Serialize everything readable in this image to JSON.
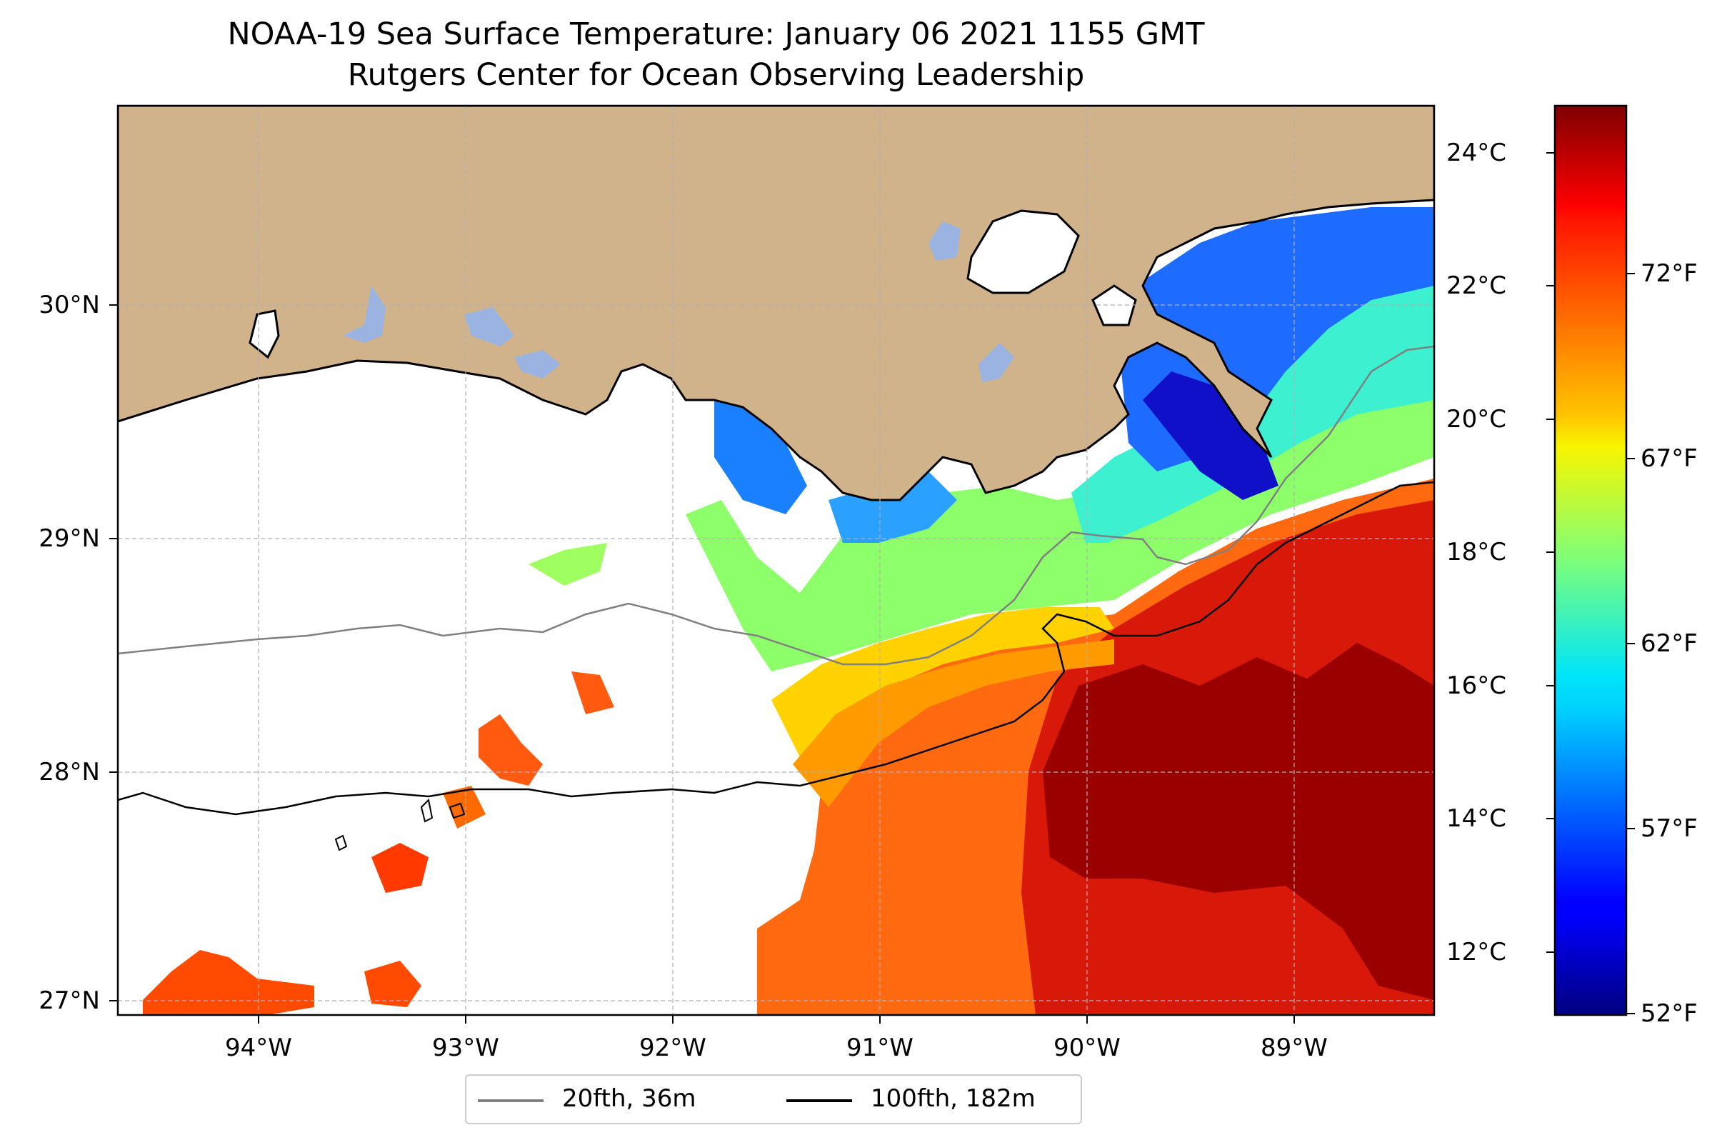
{
  "title": {
    "line1": "NOAA-19 Sea Surface Temperature: January 06 2021 1155 GMT",
    "line2": "Rutgers Center for Ocean Observing Leadership"
  },
  "map": {
    "lat_labels": [
      "30°N",
      "29°N",
      "28°N",
      "27°N"
    ],
    "lon_labels": [
      "94°W",
      "93°W",
      "92°W",
      "91°W",
      "90°W",
      "89°W"
    ],
    "extent": {
      "lon": [
        -94.55,
        -88.2
      ],
      "lat": [
        26.95,
        30.85
      ]
    },
    "colors": {
      "land": "#d1b38b",
      "lake": "#9ab3e0",
      "ocean_nodata": "#ffffff",
      "iso20": "#808080",
      "iso100": "#000000"
    }
  },
  "colorbar": {
    "colormap": "jet",
    "celsius_labels": [
      "24°C",
      "22°C",
      "20°C",
      "18°C",
      "16°C",
      "14°C",
      "12°C"
    ],
    "fahrenheit_labels": [
      "72°F",
      "67°F",
      "62°F",
      "57°F",
      "52°F"
    ],
    "range_c": [
      11.1,
      24.8
    ]
  },
  "legend": {
    "items": [
      {
        "label": "20fth, 36m",
        "color": "#808080"
      },
      {
        "label": "100fth, 182m",
        "color": "#000000"
      }
    ]
  }
}
